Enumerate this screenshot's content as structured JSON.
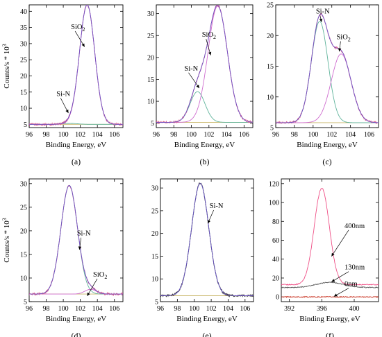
{
  "chart_data": [
    {
      "panel_label": "(a)",
      "type": "line",
      "xlabel": "Binding Energy, eV",
      "ylabel": "Counts/s * 10",
      "ylabel_exponent": "3",
      "xlim": [
        96,
        107
      ],
      "ylim": [
        4,
        42
      ],
      "xticks": [
        96,
        98,
        100,
        102,
        104,
        106
      ],
      "yticks": [
        5,
        10,
        15,
        20,
        25,
        30,
        35,
        40
      ],
      "colors": {
        "experimental": "#e0608c",
        "fit_envelope": "#6b52c4",
        "sio2": "#cf6ccf",
        "si_n": "#5fb39b",
        "background": "#c9b76a"
      },
      "background": 5.0,
      "components": [
        {
          "id": "si_n",
          "center": 100.8,
          "fwhm": 2.0,
          "height": 0.3
        },
        {
          "id": "sio2",
          "center": 102.8,
          "fwhm": 2.1,
          "height": 37.0
        }
      ],
      "annotations": [
        {
          "text": "SiO",
          "sub": "2",
          "x": 100.9,
          "y": 34.5,
          "ax": 102.5,
          "ay": 29
        },
        {
          "text": "Si-N",
          "x": 99.2,
          "y": 13.8,
          "ax": 100.6,
          "ay": 8.5
        }
      ]
    },
    {
      "panel_label": "(b)",
      "type": "line",
      "xlabel": "Binding Energy, eV",
      "xlim": [
        96,
        107
      ],
      "ylim": [
        4,
        32
      ],
      "xticks": [
        96,
        98,
        100,
        102,
        104,
        106
      ],
      "yticks": [
        5,
        10,
        15,
        20,
        25,
        30
      ],
      "colors": {
        "experimental": "#e0608c",
        "fit_envelope": "#6b52c4",
        "sio2": "#cf6ccf",
        "si_n": "#5fb39b",
        "background": "#c9b76a"
      },
      "background": 5.2,
      "components": [
        {
          "id": "si_n",
          "center": 100.7,
          "fwhm": 2.0,
          "height": 7.0
        },
        {
          "id": "sio2",
          "center": 103.0,
          "fwhm": 2.6,
          "height": 26.5
        }
      ],
      "annotations": [
        {
          "text": "SiO",
          "sub": "2",
          "x": 101.2,
          "y": 24.7,
          "ax": 102.2,
          "ay": 20.5
        },
        {
          "text": "Si-N",
          "x": 99.2,
          "y": 17.0,
          "ax": 100.9,
          "ay": 13.0
        }
      ]
    },
    {
      "panel_label": "(c)",
      "type": "line",
      "xlabel": "Binding Energy, eV",
      "xlim": [
        96,
        107
      ],
      "ylim": [
        5,
        25
      ],
      "xticks": [
        96,
        98,
        100,
        102,
        104,
        106
      ],
      "yticks": [
        5,
        10,
        15,
        20,
        25
      ],
      "colors": {
        "experimental": "#e0608c",
        "fit_envelope": "#6b52c4",
        "sio2": "#cf6ccf",
        "si_n": "#5fb39b",
        "background": "#c9b76a"
      },
      "background": 5.8,
      "components": [
        {
          "id": "si_n",
          "center": 100.7,
          "fwhm": 2.1,
          "height": 16.5
        },
        {
          "id": "sio2",
          "center": 103.0,
          "fwhm": 2.5,
          "height": 11.2
        }
      ],
      "annotations": [
        {
          "text": "Si-N",
          "x": 100.3,
          "y": 23.6,
          "ax": 100.9,
          "ay": 22.2
        },
        {
          "text": "SiO",
          "sub": "2",
          "x": 102.5,
          "y": 19.4,
          "ax": 102.8,
          "ay": 17.4
        }
      ]
    },
    {
      "panel_label": "(d)",
      "type": "line",
      "xlabel": "Binding Energy, eV",
      "ylabel": "Counts/s * 10",
      "ylabel_exponent": "3",
      "xlim": [
        96,
        107
      ],
      "ylim": [
        5,
        31
      ],
      "xticks": [
        96,
        98,
        100,
        102,
        104,
        106
      ],
      "yticks": [
        5,
        10,
        15,
        20,
        25,
        30
      ],
      "colors": {
        "experimental": "#e0608c",
        "fit_envelope": "#6b52c4",
        "sio2": "#cf6ccf",
        "si_n": "#5fb39b",
        "background": "#c9b76a"
      },
      "background": 6.6,
      "components": [
        {
          "id": "si_n",
          "center": 100.7,
          "fwhm": 2.3,
          "height": 23.0
        },
        {
          "id": "sio2",
          "center": 103.2,
          "fwhm": 1.6,
          "height": 1.0
        }
      ],
      "annotations": [
        {
          "text": "Si-N",
          "x": 101.6,
          "y": 19.0,
          "ax": 101.9,
          "ay": 16.0
        },
        {
          "text": "SiO",
          "sub": "2",
          "x": 103.5,
          "y": 10.3,
          "ax": 102.8,
          "ay": 6.2
        }
      ]
    },
    {
      "panel_label": "(e)",
      "type": "line",
      "xlabel": "Binding Energy, eV",
      "xlim": [
        96,
        107
      ],
      "ylim": [
        5,
        32
      ],
      "xticks": [
        96,
        98,
        100,
        102,
        104,
        106
      ],
      "yticks": [
        5,
        10,
        15,
        20,
        25,
        30
      ],
      "colors": {
        "experimental": "#333333",
        "fit_envelope": "#6b52c4",
        "sio2": "#cf6ccf",
        "si_n": "#5fb39b",
        "background": "#c9b76a"
      },
      "background": 6.3,
      "components": [
        {
          "id": "si_n",
          "center": 100.7,
          "fwhm": 2.4,
          "height": 24.7
        }
      ],
      "annotations": [
        {
          "text": "Si-N",
          "x": 101.8,
          "y": 25.6,
          "ax": 101.6,
          "ay": 22.2
        }
      ]
    },
    {
      "panel_label": "(f)",
      "type": "line",
      "xlabel": "Binding Energy, eV",
      "xlim": [
        391,
        403
      ],
      "ylim": [
        -5,
        125
      ],
      "xticks": [
        392,
        396,
        400
      ],
      "yticks": [
        0,
        20,
        40,
        60,
        80,
        100,
        120
      ],
      "colors": {
        "400nm": "#ef4f86",
        "130nm": "#555555",
        "0nm": "#c8301f"
      },
      "series": [
        {
          "name": "400nm",
          "baseline": 13.0,
          "center": 396.0,
          "fwhm": 2.2,
          "height": 102.0
        },
        {
          "name": "130nm",
          "baseline": 10.0,
          "center": 397.0,
          "fwhm": 3.8,
          "height": 5.5
        },
        {
          "name": "0nm",
          "baseline": 0.0,
          "center": 397.0,
          "fwhm": 3.0,
          "height": 0.0
        }
      ],
      "annotations": [
        {
          "text": "400nm",
          "x": 398.8,
          "y": 73.0,
          "ax": 397.2,
          "ay": 43.0
        },
        {
          "text": "130nm",
          "x": 398.8,
          "y": 29.0,
          "ax": 397.2,
          "ay": 16.0
        },
        {
          "text": "0nm",
          "x": 398.8,
          "y": 11.5,
          "ax": 397.5,
          "ay": 0.5
        }
      ]
    }
  ]
}
